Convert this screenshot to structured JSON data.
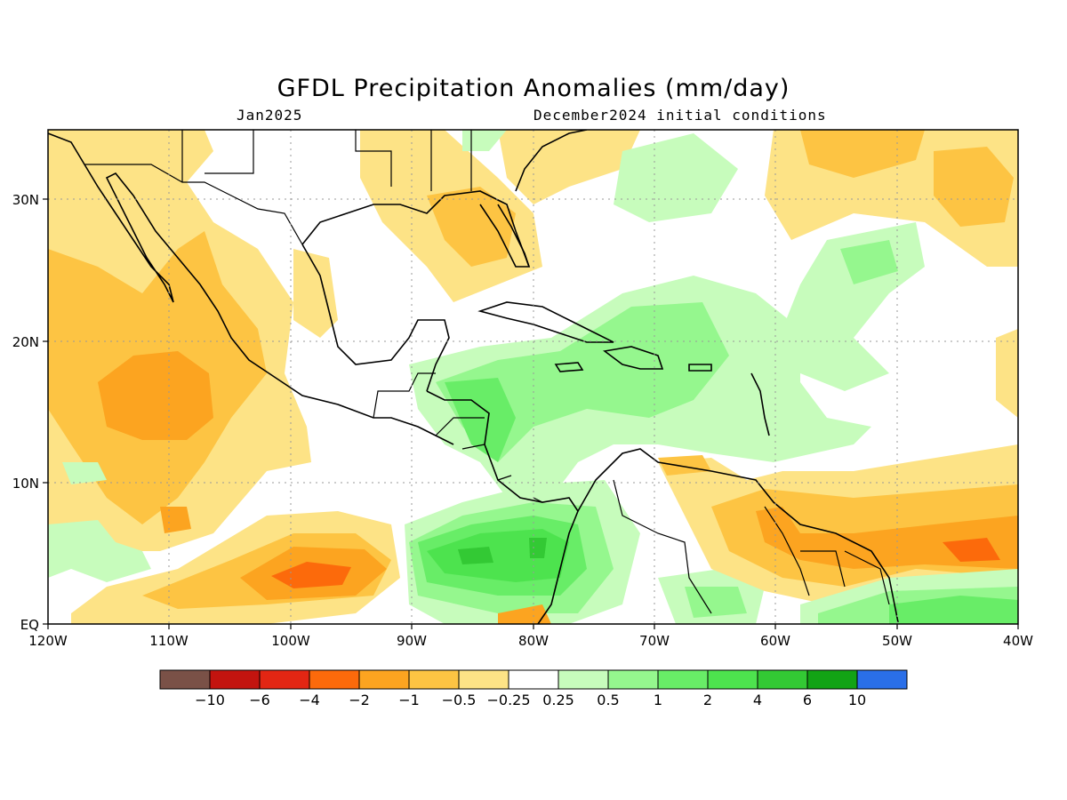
{
  "title": "GFDL Precipitation Anomalies (mm/day)",
  "subtitle_left": "Jan2025",
  "subtitle_right": "December2024 initial conditions",
  "map": {
    "lon_range": [
      -120,
      -40
    ],
    "lat_range": [
      0,
      35
    ],
    "x_ticks": [
      "120W",
      "110W",
      "100W",
      "90W",
      "80W",
      "70W",
      "60W",
      "50W",
      "40W"
    ],
    "y_ticks": [
      "EQ",
      "10N",
      "20N",
      "30N"
    ],
    "grid": true
  },
  "colorbar": {
    "colors": [
      "#7a5147",
      "#c3140f",
      "#e22613",
      "#fc6a0b",
      "#fca420",
      "#fdc443",
      "#fde386",
      "#ffffff",
      "#c7fcbc",
      "#95f78e",
      "#68ed67",
      "#4de34e",
      "#33c934",
      "#12a315",
      "#2a6fe8"
    ],
    "labels": [
      "−10",
      "−6",
      "−4",
      "−2",
      "−1",
      "−0.5",
      "−0.25",
      "0.25",
      "0.5",
      "1",
      "2",
      "4",
      "6",
      "10"
    ]
  }
}
